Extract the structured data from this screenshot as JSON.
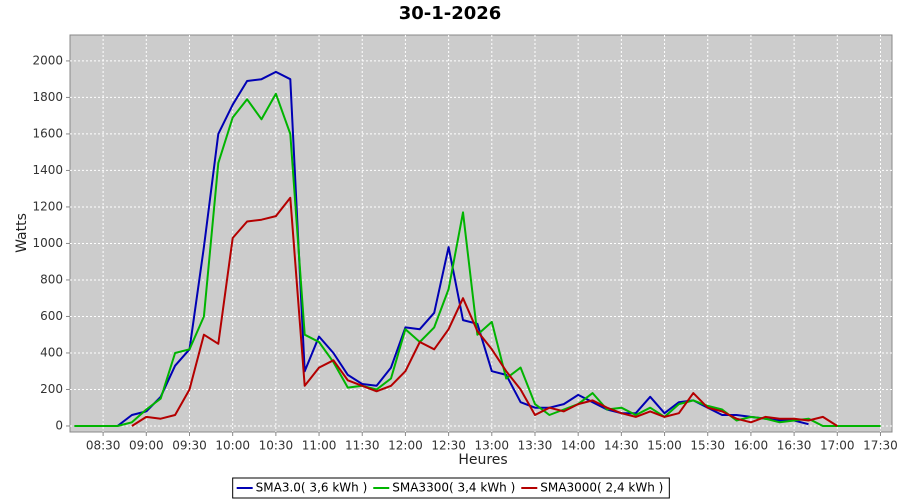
{
  "chart_data": {
    "type": "line",
    "title": "30-1-2026",
    "x_label": "Heures",
    "y_label": "Watts",
    "x": [
      "08:10",
      "08:20",
      "08:30",
      "08:40",
      "08:50",
      "09:00",
      "09:10",
      "09:20",
      "09:30",
      "09:40",
      "09:50",
      "10:00",
      "10:10",
      "10:20",
      "10:30",
      "10:40",
      "10:50",
      "11:00",
      "11:10",
      "11:20",
      "11:30",
      "11:40",
      "11:50",
      "12:00",
      "12:10",
      "12:20",
      "12:30",
      "12:40",
      "12:50",
      "13:00",
      "13:10",
      "13:20",
      "13:30",
      "13:40",
      "13:50",
      "14:00",
      "14:10",
      "14:20",
      "14:30",
      "14:40",
      "14:50",
      "15:00",
      "15:10",
      "15:20",
      "15:30",
      "15:40",
      "15:50",
      "16:00",
      "16:10",
      "16:20",
      "16:30",
      "16:40",
      "16:50",
      "17:00",
      "17:10",
      "17:20",
      "17:30"
    ],
    "series": [
      {
        "name": "SMA3.0( 3,6 kWh )",
        "color": "#0000b4",
        "values": [
          null,
          null,
          null,
          0,
          60,
          80,
          160,
          330,
          420,
          980,
          1600,
          1760,
          1890,
          1900,
          1940,
          1900,
          300,
          490,
          400,
          280,
          230,
          220,
          320,
          540,
          530,
          620,
          980,
          580,
          560,
          300,
          280,
          130,
          100,
          100,
          120,
          170,
          130,
          90,
          70,
          70,
          160,
          70,
          130,
          140,
          100,
          60,
          60,
          50,
          40,
          30,
          30,
          10,
          null,
          null,
          null,
          null,
          null
        ]
      },
      {
        "name": "SMA3300( 3,4 kWh )",
        "color": "#00b400",
        "values": [
          0,
          0,
          0,
          0,
          20,
          90,
          150,
          400,
          420,
          600,
          1440,
          1690,
          1790,
          1680,
          1820,
          1600,
          500,
          460,
          350,
          210,
          220,
          200,
          260,
          530,
          460,
          540,
          750,
          1170,
          500,
          570,
          260,
          320,
          120,
          60,
          90,
          120,
          180,
          90,
          100,
          60,
          100,
          50,
          120,
          140,
          110,
          90,
          30,
          50,
          40,
          20,
          30,
          40,
          0,
          0,
          0,
          0,
          0
        ]
      },
      {
        "name": "SMA3000( 2,4 kWh )",
        "color": "#b40000",
        "values": [
          null,
          null,
          null,
          null,
          0,
          50,
          40,
          60,
          200,
          500,
          450,
          1030,
          1120,
          1130,
          1150,
          1250,
          220,
          320,
          360,
          250,
          220,
          190,
          220,
          300,
          460,
          420,
          530,
          700,
          520,
          420,
          300,
          200,
          60,
          100,
          80,
          120,
          140,
          100,
          70,
          50,
          80,
          50,
          70,
          180,
          100,
          80,
          40,
          20,
          50,
          40,
          40,
          30,
          50,
          0,
          null,
          null,
          null
        ]
      }
    ],
    "xlim": [
      "08:07",
      "17:38"
    ],
    "xticks": [
      "08:30",
      "09:00",
      "09:30",
      "10:00",
      "10:30",
      "11:00",
      "11:30",
      "12:00",
      "12:30",
      "13:00",
      "13:30",
      "14:00",
      "14:30",
      "15:00",
      "15:30",
      "16:00",
      "16:30",
      "17:00",
      "17:30"
    ],
    "ylim": [
      -33,
      2142
    ],
    "yticks": [
      0,
      200,
      400,
      600,
      800,
      1000,
      1200,
      1400,
      1600,
      1800,
      2000
    ],
    "grid": true,
    "legend": "bottom"
  }
}
